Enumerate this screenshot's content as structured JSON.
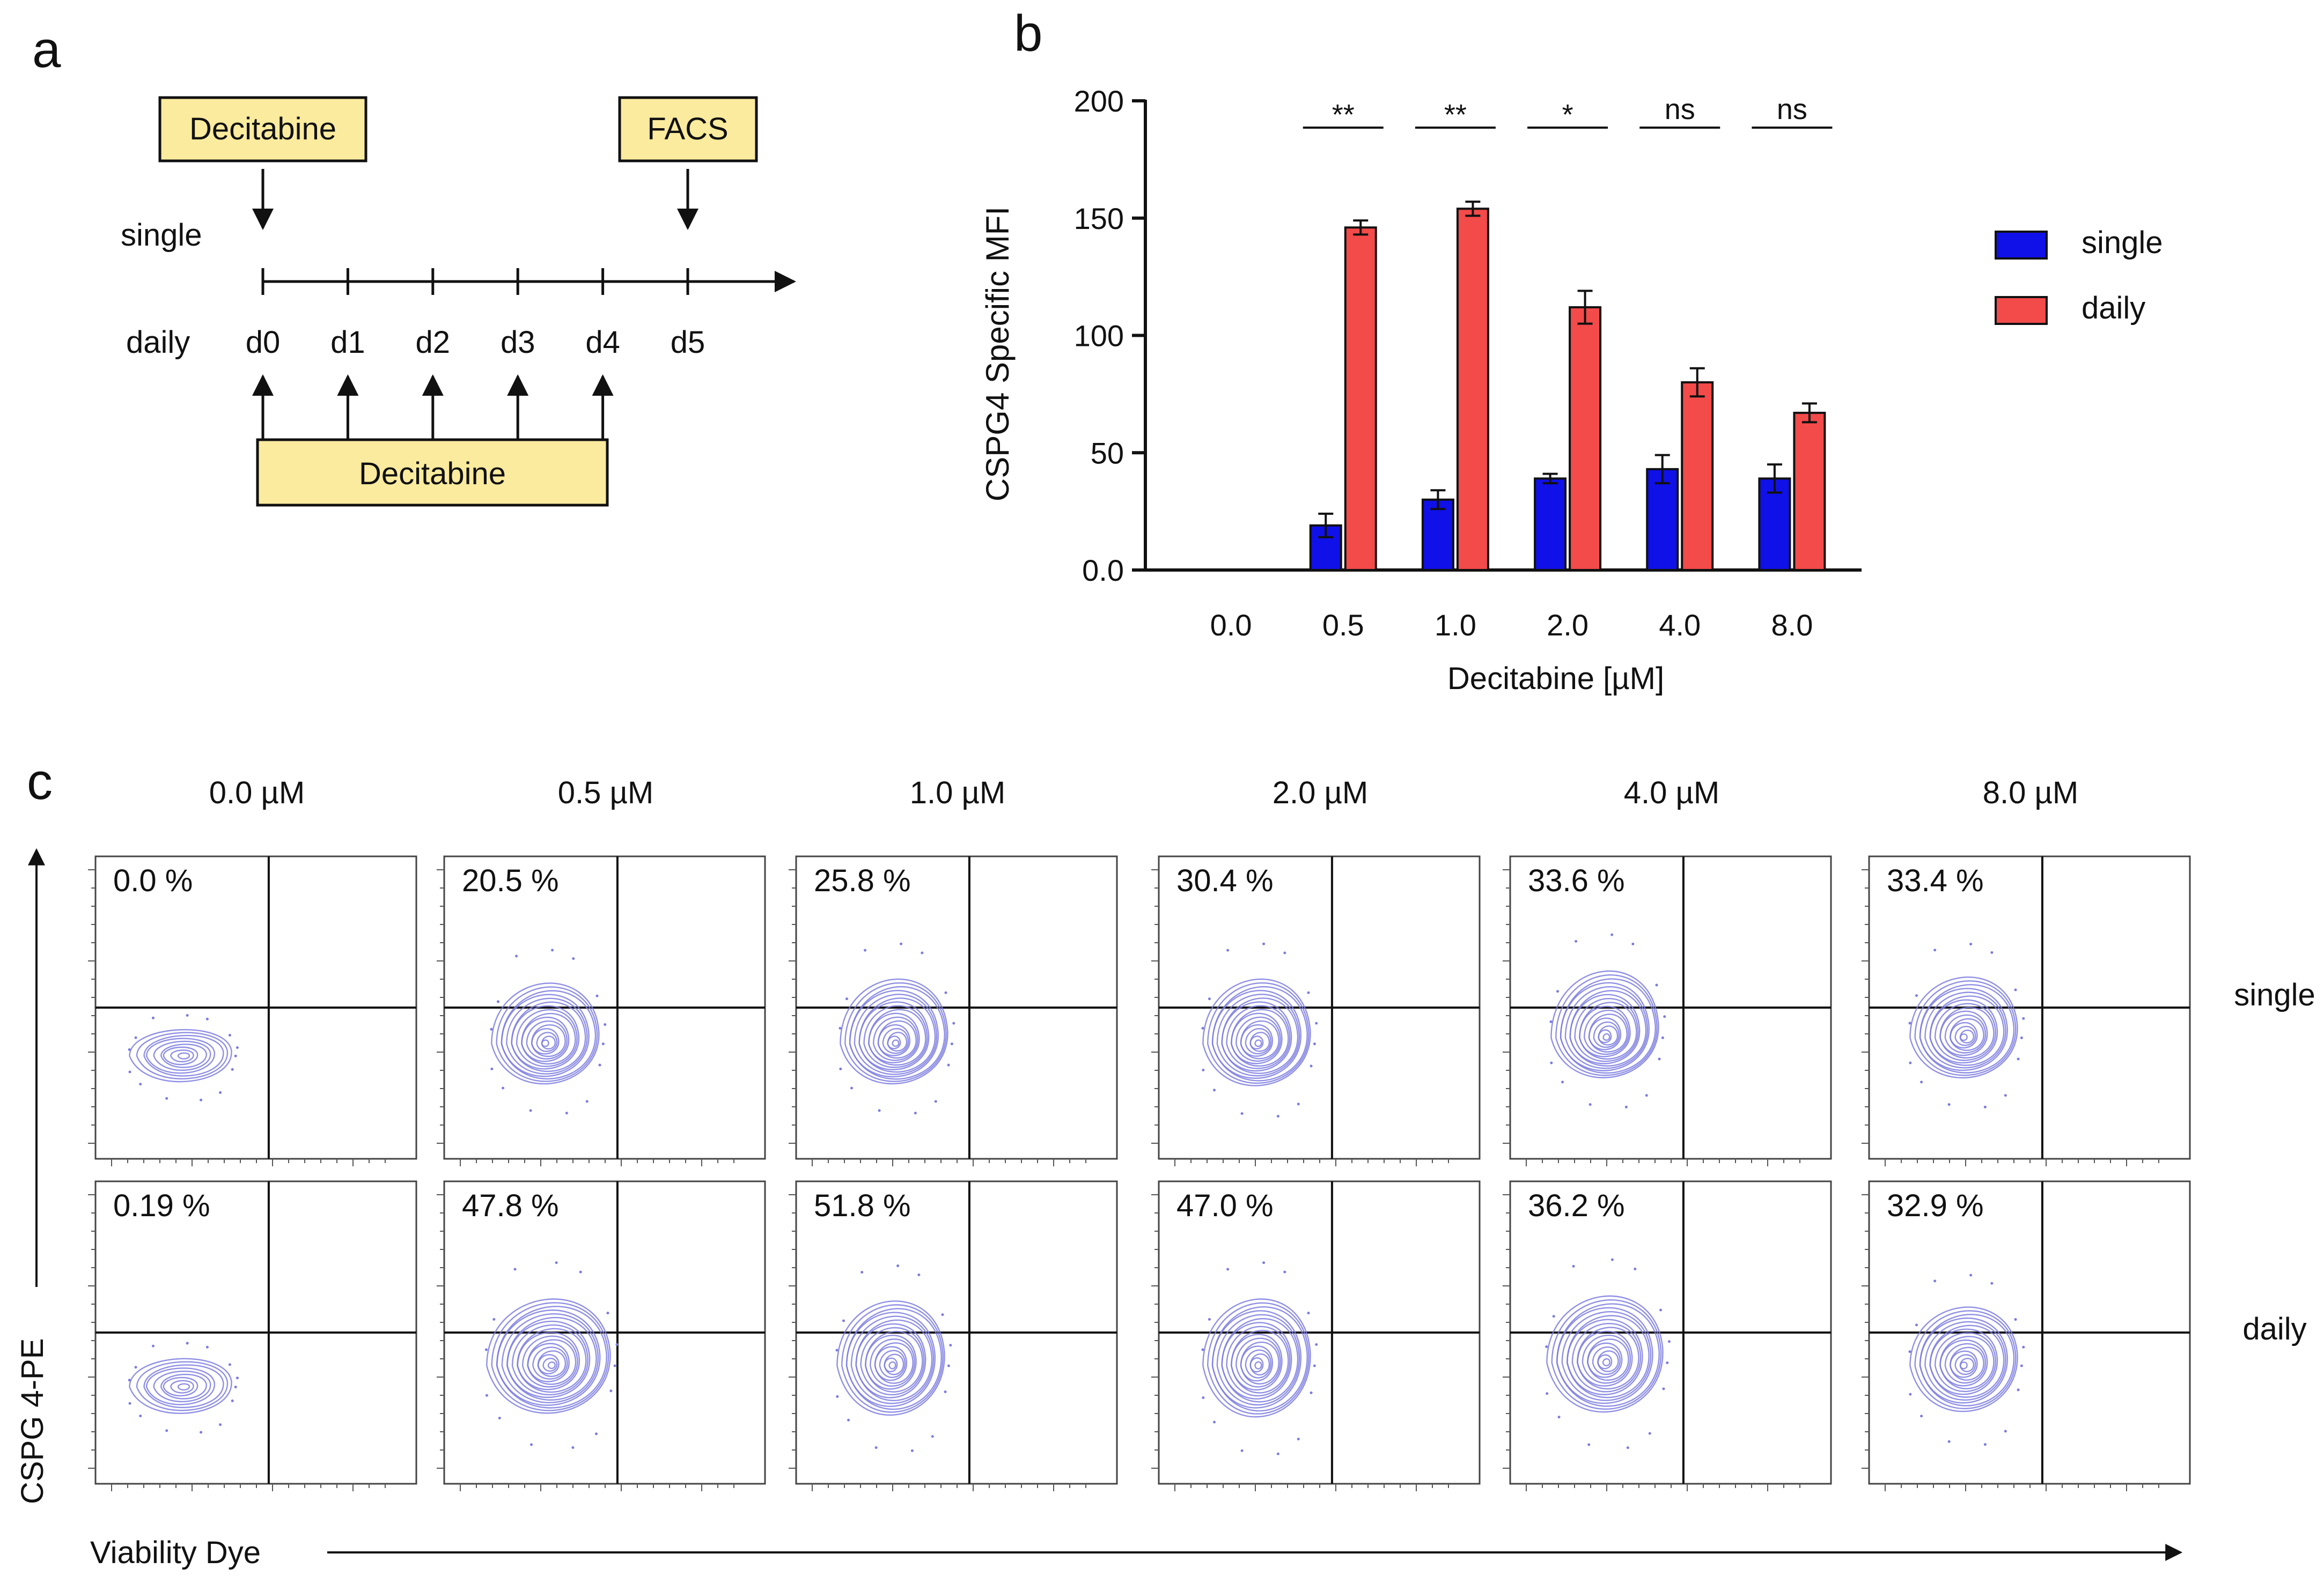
{
  "panels": {
    "a": "a",
    "b": "b",
    "c": "c"
  },
  "panel_a": {
    "box_top_left": "Decitabine",
    "box_top_right": "FACS",
    "box_bottom": "Decitabine",
    "row_single": "single",
    "row_daily": "daily",
    "days": [
      "d0",
      "d1",
      "d2",
      "d3",
      "d4",
      "d5"
    ]
  },
  "chart_data": {
    "type": "bar",
    "ylabel": "CSPG4 Specific MFI",
    "xlabel": "Decitabine [µM]",
    "categories": [
      "0.0",
      "0.5",
      "1.0",
      "2.0",
      "4.0",
      "8.0"
    ],
    "ylim": [
      0,
      200
    ],
    "yticks": [
      "0.0",
      "50",
      "100",
      "150",
      "200"
    ],
    "series": [
      {
        "name": "single",
        "color": "#1010e8",
        "values": [
          0,
          19,
          30,
          39,
          43,
          39
        ],
        "errors": [
          0,
          5,
          4,
          2,
          6,
          6
        ]
      },
      {
        "name": "daily",
        "color": "#f34a4a",
        "values": [
          0,
          146,
          154,
          112,
          80,
          67
        ],
        "errors": [
          0,
          3,
          3,
          7,
          6,
          4
        ]
      }
    ],
    "significance": [
      "**",
      "**",
      "*",
      "ns",
      "ns"
    ],
    "legend": [
      "single",
      "daily"
    ],
    "legend_position": "right"
  },
  "panel_c": {
    "concentrations": [
      "0.0 µM",
      "0.5 µM",
      "1.0 µM",
      "2.0 µM",
      "4.0 µM",
      "8.0 µM"
    ],
    "rows": [
      {
        "label": "single",
        "percentages": [
          "0.0 %",
          "20.5 %",
          "25.8 %",
          "30.4 %",
          "33.6 %",
          "33.4 %"
        ]
      },
      {
        "label": "daily",
        "percentages": [
          "0.19 %",
          "47.8 %",
          "51.8 %",
          "47.0 %",
          "36.2 %",
          "32.9 %"
        ]
      }
    ],
    "y_axis_label": "CSPG 4-PE",
    "x_axis_label": "Viability Dye",
    "contour_color": "#7b7be0"
  }
}
